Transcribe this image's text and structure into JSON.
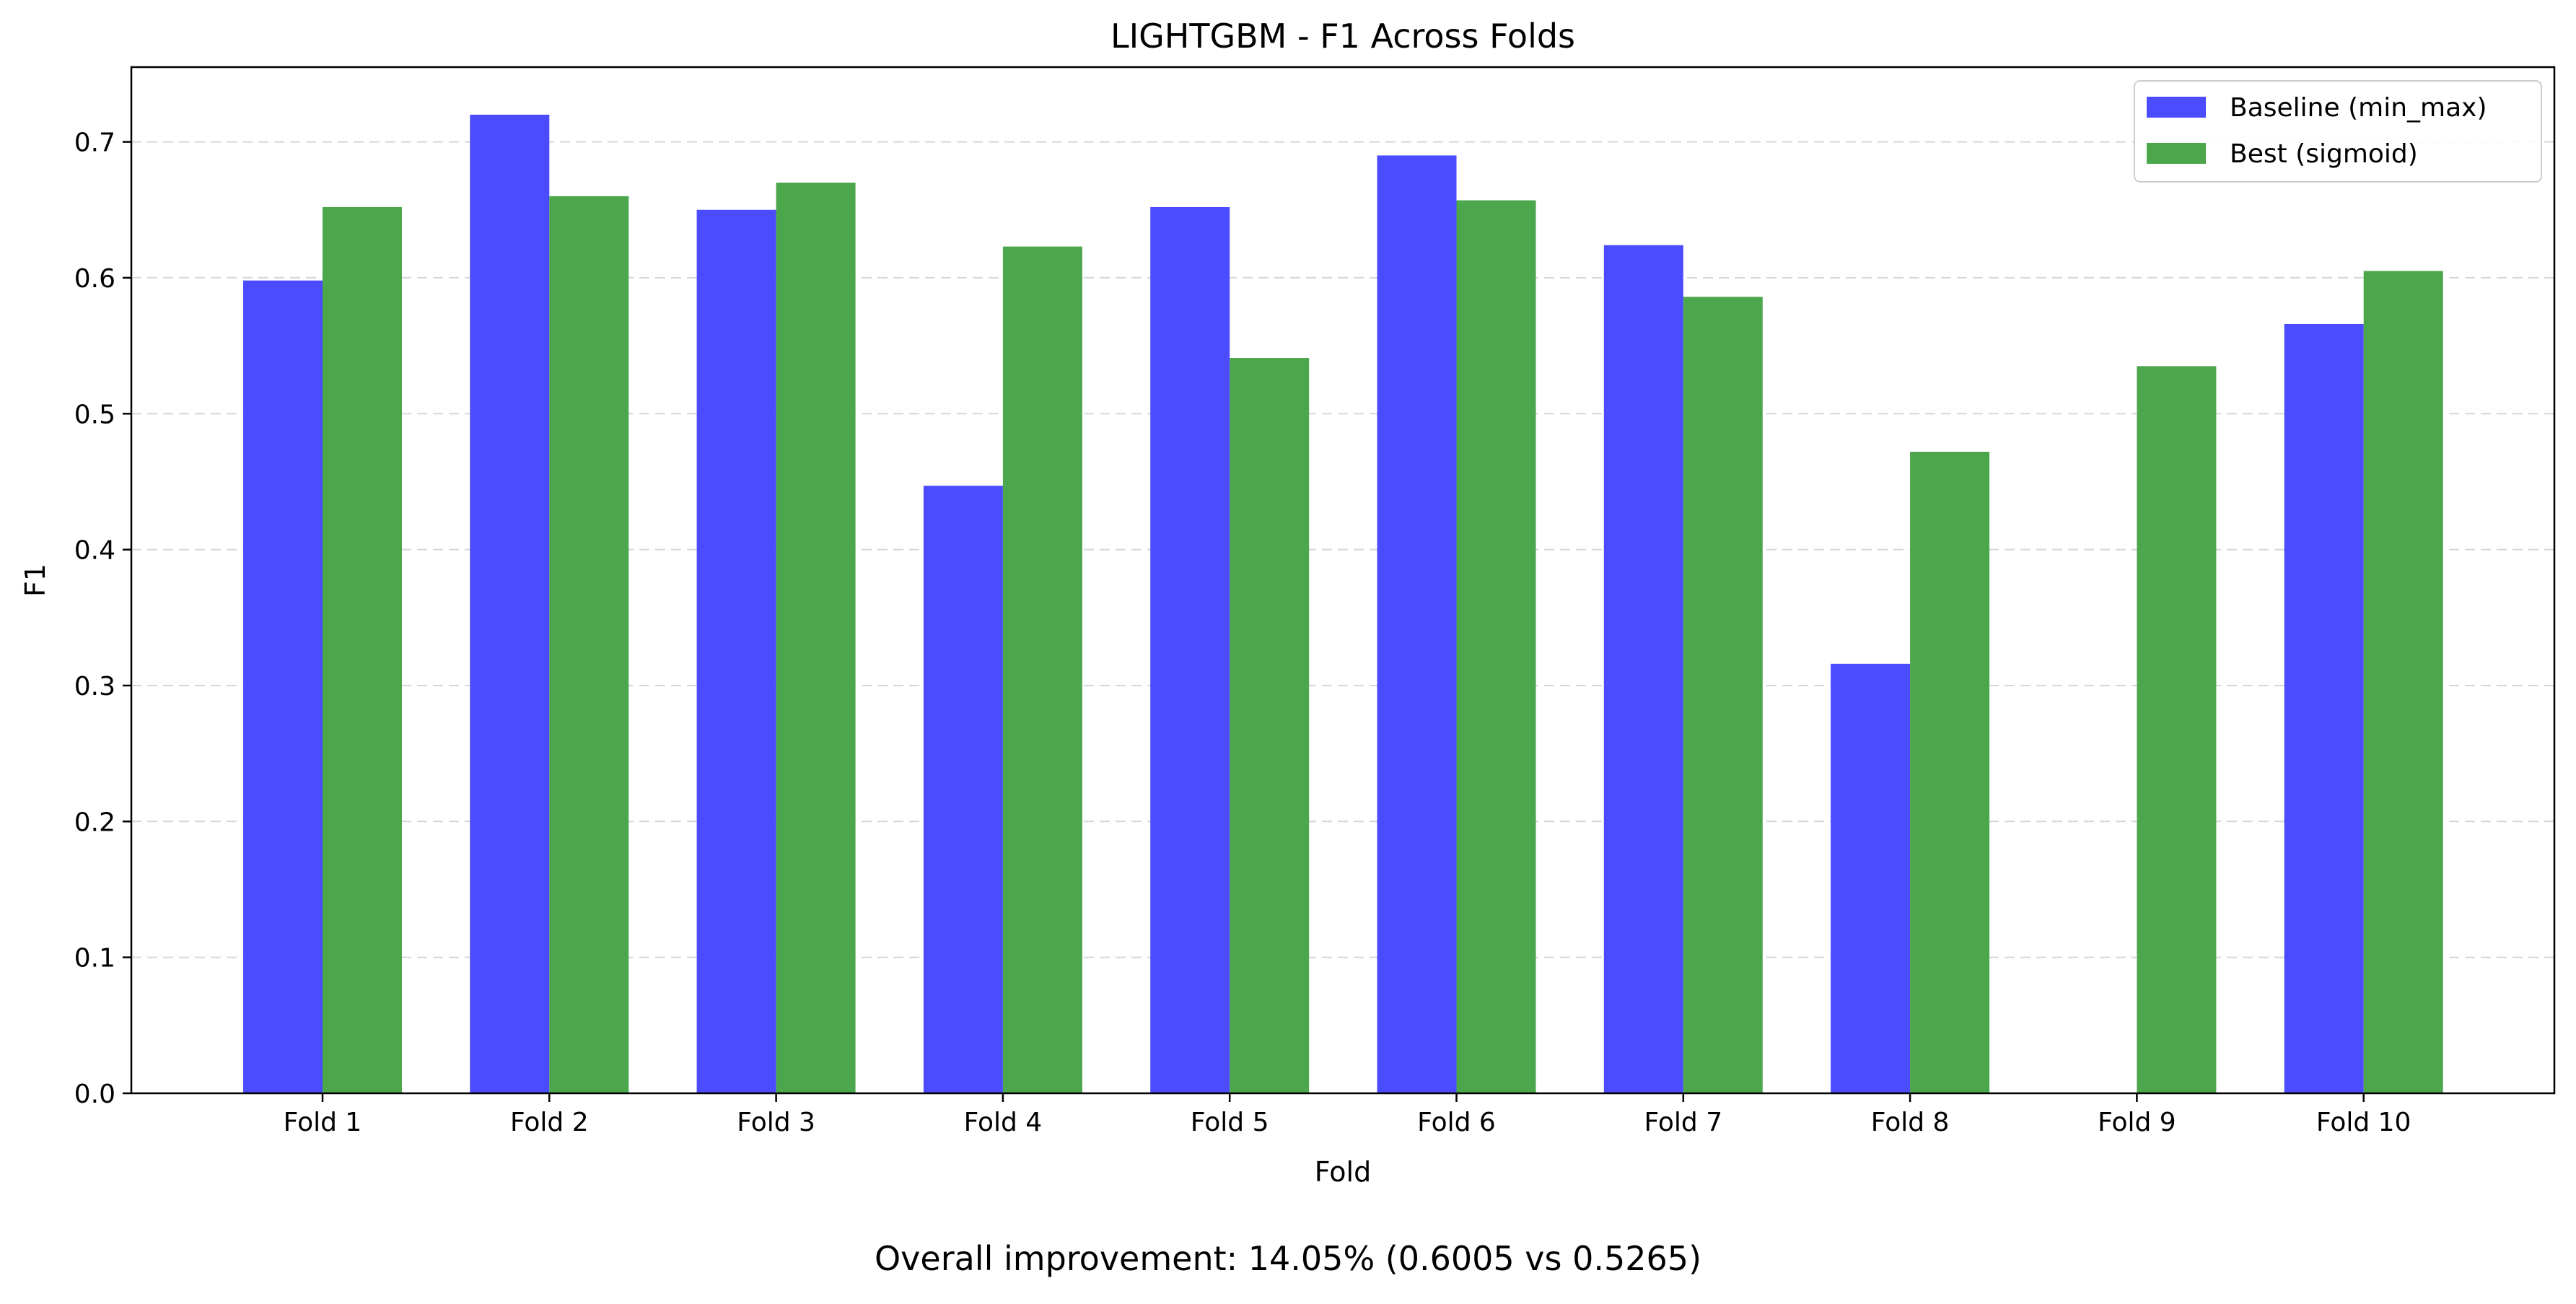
{
  "chart_data": {
    "type": "bar",
    "title": "LIGHTGBM - F1 Across Folds",
    "xlabel": "Fold",
    "ylabel": "F1",
    "categories": [
      "Fold 1",
      "Fold 2",
      "Fold 3",
      "Fold 4",
      "Fold 5",
      "Fold 6",
      "Fold 7",
      "Fold 8",
      "Fold 9",
      "Fold 10"
    ],
    "series": [
      {
        "name": "Baseline (min_max)",
        "color": "#4b4bff",
        "values": [
          0.598,
          0.72,
          0.65,
          0.447,
          0.652,
          0.69,
          0.624,
          0.316,
          0.0,
          0.566
        ]
      },
      {
        "name": "Best (sigmoid)",
        "color": "#4ca64c",
        "values": [
          0.652,
          0.66,
          0.67,
          0.623,
          0.541,
          0.657,
          0.586,
          0.472,
          0.535,
          0.605
        ]
      }
    ],
    "ylim": [
      0,
      0.755
    ],
    "yticks": [
      0.0,
      0.1,
      0.2,
      0.3,
      0.4,
      0.5,
      0.6,
      0.7
    ],
    "ytick_labels": [
      "0.0",
      "0.1",
      "0.2",
      "0.3",
      "0.4",
      "0.5",
      "0.6",
      "0.7"
    ],
    "grid": "y-dashed",
    "legend_position": "top-right"
  },
  "footer": {
    "text": "Overall improvement: 14.05% (0.6005 vs 0.5265)"
  }
}
